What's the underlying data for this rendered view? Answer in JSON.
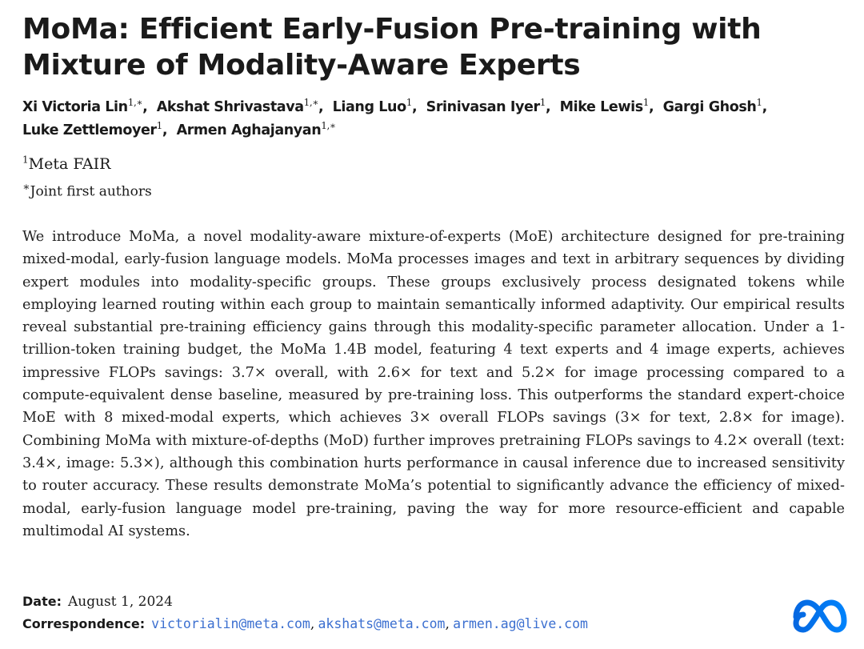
{
  "title": "MoMa: Efficient Early-Fusion Pre-training with Mixture of Modality-Aware Experts",
  "authors": [
    {
      "name": "Xi Victoria Lin",
      "sup": "1,∗",
      "sep": ","
    },
    {
      "name": "Akshat Shrivastava",
      "sup": "1,∗",
      "sep": ","
    },
    {
      "name": "Liang Luo",
      "sup": "1",
      "sep": ","
    },
    {
      "name": "Srinivasan Iyer",
      "sup": "1",
      "sep": ","
    },
    {
      "name": "Mike Lewis",
      "sup": "1",
      "sep": ","
    },
    {
      "name": "Gargi Ghosh",
      "sup": "1",
      "sep": ","
    },
    {
      "name": "Luke Zettlemoyer",
      "sup": "1",
      "sep": ","
    },
    {
      "name": "Armen Aghajanyan",
      "sup": "1,∗",
      "sep": ""
    }
  ],
  "affiliation": {
    "sup": "1",
    "text": "Meta FAIR"
  },
  "joint_note": {
    "sup": "∗",
    "text": "Joint first authors"
  },
  "abstract": "We introduce MoMa, a novel modality-aware mixture-of-experts (MoE) architecture designed for pre-training mixed-modal, early-fusion language models. MoMa processes images and text in arbitrary sequences by dividing expert modules into modality-specific groups. These groups exclusively process designated tokens while employing learned routing within each group to maintain semantically informed adaptivity. Our empirical results reveal substantial pre-training efficiency gains through this modality-specific parameter allocation. Under a 1-trillion-token training budget, the MoMa 1.4B model, featuring 4 text experts and 4 image experts, achieves impressive FLOPs savings: 3.7× overall, with 2.6× for text and 5.2× for image processing compared to a compute-equivalent dense baseline, measured by pre-training loss. This outperforms the standard expert-choice MoE with 8 mixed-modal experts, which achieves 3× overall FLOPs savings (3× for text, 2.8× for image). Combining MoMa with mixture-of-depths (MoD) further improves pretraining FLOPs savings to 4.2× overall (text: 3.4×, image: 5.3×), although this combination hurts performance in causal inference due to increased sensitivity to router accuracy. These results demonstrate MoMa’s potential to significantly advance the efficiency of mixed-modal, early-fusion language model pre-training, paving the way for more resource-efficient and capable multimodal AI systems.",
  "date": {
    "label": "Date:",
    "value": "August 1, 2024"
  },
  "correspondence": {
    "label": "Correspondence:",
    "emails": [
      "victorialin@meta.com",
      "akshats@meta.com",
      "armen.ag@live.com"
    ],
    "separator": ","
  },
  "logo": {
    "icon": "meta-logo-icon",
    "color_start": "#0668e1",
    "color_end": "#0082fb"
  }
}
